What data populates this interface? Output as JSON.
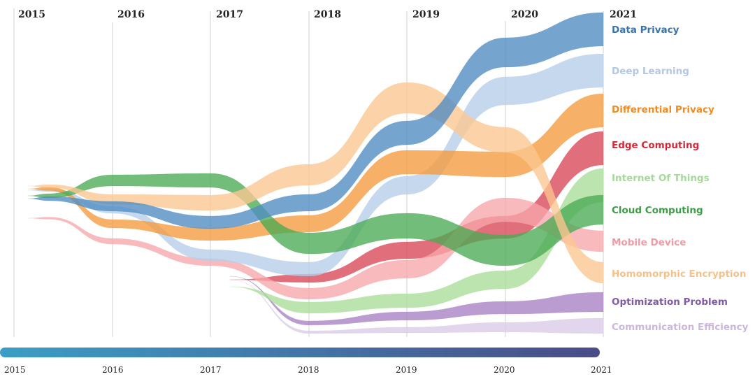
{
  "chart_data": {
    "type": "area",
    "subtype": "streamgraph",
    "years": [
      "2015",
      "2016",
      "2017",
      "2018",
      "2019",
      "2020",
      "2021"
    ],
    "axis_years": [
      "2015",
      "2016",
      "2017",
      "2018",
      "2019",
      "2020",
      "2021"
    ],
    "series": [
      {
        "name": "Data Privacy",
        "color": "#4e8cc2",
        "label_color": "#3a73ad",
        "center": [
          284,
          295,
          318,
          290,
          190,
          75,
          42
        ],
        "width": [
          6,
          14,
          18,
          24,
          34,
          42,
          48
        ]
      },
      {
        "name": "Deep Learning",
        "color": "#b6cde9",
        "label_color": "#b3c8e6",
        "center": [
          272,
          300,
          365,
          385,
          265,
          130,
          101
        ],
        "width": [
          4,
          10,
          16,
          20,
          26,
          40,
          48
        ]
      },
      {
        "name": "Differential Privacy",
        "color": "#f59a3c",
        "label_color": "#f28a1f",
        "center": [
          270,
          320,
          335,
          320,
          232,
          235,
          158
        ],
        "width": [
          5,
          12,
          18,
          24,
          34,
          36,
          48
        ]
      },
      {
        "name": "Edge Computing",
        "color": "#d94756",
        "label_color": "#d62839",
        "center": [
          null,
          null,
          400,
          398,
          358,
          325,
          212
        ],
        "width": [
          0,
          0,
          6,
          12,
          24,
          32,
          48
        ]
      },
      {
        "name": "Internet Of Things",
        "color": "#a8dc98",
        "label_color": "#a6d99a",
        "center": [
          null,
          null,
          410,
          440,
          430,
          400,
          265
        ],
        "width": [
          0,
          0,
          8,
          16,
          20,
          26,
          48
        ]
      },
      {
        "name": "Cloud Computing",
        "color": "#4aaa55",
        "label_color": "#3e9d46",
        "center": [
          280,
          258,
          258,
          348,
          323,
          358,
          300
        ],
        "width": [
          6,
          16,
          20,
          30,
          36,
          44,
          42
        ]
      },
      {
        "name": "Mobile Device",
        "color": "#f7a6ac",
        "label_color": "#f19aa4",
        "center": [
          312,
          345,
          375,
          420,
          385,
          300,
          345
        ],
        "width": [
          3,
          8,
          10,
          16,
          26,
          34,
          30
        ]
      },
      {
        "name": "Homomorphic Encryption",
        "color": "#fbc790",
        "label_color": "#f5c188",
        "center": [
          266,
          285,
          290,
          250,
          140,
          200,
          390
        ],
        "width": [
          4,
          14,
          22,
          30,
          44,
          36,
          30
        ]
      },
      {
        "name": "Optimization Problem",
        "color": "#a680c4",
        "label_color": "#7f5ba8",
        "center": [
          null,
          null,
          395,
          462,
          452,
          440,
          432
        ],
        "width": [
          0,
          0,
          3,
          6,
          12,
          18,
          28
        ]
      },
      {
        "name": "Communication Efficiency",
        "color": "#d9cbe6",
        "label_color": "#cdb7df",
        "center": [
          null,
          null,
          400,
          475,
          472,
          468,
          466
        ],
        "width": [
          0,
          0,
          2,
          4,
          8,
          14,
          22
        ]
      }
    ],
    "timeline": {
      "start_color": "#3b9ec6",
      "end_color": "#4a4c88"
    }
  }
}
